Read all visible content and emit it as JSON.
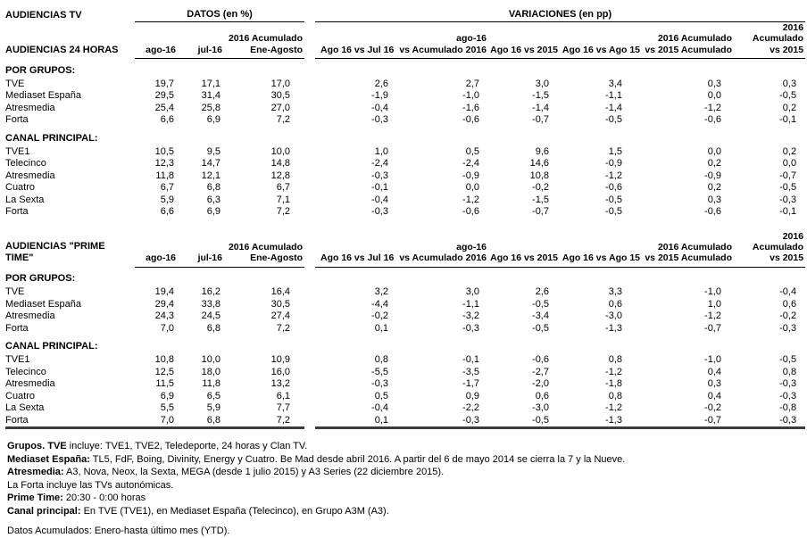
{
  "title": "AUDIENCIAS TV",
  "group_headers": {
    "datos": "DATOS (en %)",
    "variaciones": "VARIACIONES (en pp)"
  },
  "columns": [
    "ago-16",
    "jul-16",
    "2016 Acumulado\nEne-Agosto",
    "Ago 16 vs Jul 16",
    "ago-16\nvs Acumulado 2016",
    "Ago 16 vs 2015",
    "Ago 16 vs Ago 15",
    "2016 Acumulado\nvs 2015 Acumulado",
    "2016 Acumulado\nvs 2015"
  ],
  "sections": [
    {
      "title": "AUDIENCIAS 24 HORAS",
      "groups": [
        {
          "label": "POR GRUPOS:",
          "rows": [
            {
              "label": "TVE",
              "values": [
                "19,7",
                "17,1",
                "17,0",
                "2,6",
                "2,7",
                "3,0",
                "3,4",
                "0,3",
                "0,3"
              ]
            },
            {
              "label": "Mediaset España",
              "values": [
                "29,5",
                "31,4",
                "30,5",
                "-1,9",
                "-1,0",
                "-1,5",
                "-1,1",
                "0,0",
                "-0,5"
              ]
            },
            {
              "label": "Atresmedia",
              "values": [
                "25,4",
                "25,8",
                "27,0",
                "-0,4",
                "-1,6",
                "-1,4",
                "-1,4",
                "-1,2",
                "0,2"
              ]
            },
            {
              "label": "Forta",
              "values": [
                "6,6",
                "6,9",
                "7,2",
                "-0,3",
                "-0,6",
                "-0,7",
                "-0,5",
                "-0,6",
                "-0,1"
              ]
            }
          ]
        },
        {
          "label": "CANAL PRINCIPAL:",
          "rows": [
            {
              "label": "TVE1",
              "values": [
                "10,5",
                "9,5",
                "10,0",
                "1,0",
                "0,5",
                "9,6",
                "1,5",
                "0,0",
                "0,2"
              ]
            },
            {
              "label": "Telecinco",
              "values": [
                "12,3",
                "14,7",
                "14,8",
                "-2,4",
                "-2,4",
                "14,6",
                "-0,9",
                "0,2",
                "0,0"
              ]
            },
            {
              "label": "Atresmedia",
              "values": [
                "11,8",
                "12,1",
                "12,8",
                "-0,3",
                "-0,9",
                "10,8",
                "-1,2",
                "-0,9",
                "-0,7"
              ]
            },
            {
              "label": "Cuatro",
              "values": [
                "6,7",
                "6,8",
                "6,7",
                "-0,1",
                "0,0",
                "-0,2",
                "-0,6",
                "0,2",
                "-0,5"
              ]
            },
            {
              "label": "La Sexta",
              "values": [
                "5,9",
                "6,3",
                "7,1",
                "-0,4",
                "-1,2",
                "-1,5",
                "-0,5",
                "0,3",
                "-0,3"
              ]
            },
            {
              "label": "Forta",
              "values": [
                "6,6",
                "6,9",
                "7,2",
                "-0,3",
                "-0,6",
                "-0,7",
                "-0,5",
                "-0,6",
                "-0,1"
              ]
            }
          ]
        }
      ]
    },
    {
      "title": "AUDIENCIAS \"PRIME TIME\"",
      "groups": [
        {
          "label": "POR GRUPOS:",
          "rows": [
            {
              "label": "TVE",
              "values": [
                "19,4",
                "16,2",
                "16,4",
                "3,2",
                "3,0",
                "2,6",
                "3,3",
                "-1,0",
                "-0,4"
              ]
            },
            {
              "label": "Mediaset España",
              "values": [
                "29,4",
                "33,8",
                "30,5",
                "-4,4",
                "-1,1",
                "-0,5",
                "0,6",
                "1,0",
                "0,6"
              ]
            },
            {
              "label": "Atresmedia",
              "values": [
                "24,3",
                "24,5",
                "27,4",
                "-0,2",
                "-3,2",
                "-3,4",
                "-3,0",
                "-1,2",
                "-0,2"
              ]
            },
            {
              "label": "Forta",
              "values": [
                "7,0",
                "6,8",
                "7,2",
                "0,1",
                "-0,3",
                "-0,5",
                "-1,3",
                "-0,7",
                "-0,3"
              ]
            }
          ]
        },
        {
          "label": "CANAL PRINCIPAL:",
          "rows": [
            {
              "label": "TVE1",
              "values": [
                "10,8",
                "10,0",
                "10,9",
                "0,8",
                "-0,1",
                "-0,6",
                "0,8",
                "-1,0",
                "-0,5"
              ]
            },
            {
              "label": "Telecinco",
              "values": [
                "12,5",
                "18,0",
                "16,0",
                "-5,5",
                "-3,5",
                "-2,7",
                "-1,2",
                "0,4",
                "0,8"
              ]
            },
            {
              "label": "Atresmedia",
              "values": [
                "11,5",
                "11,8",
                "13,2",
                "-0,3",
                "-1,7",
                "-2,0",
                "-1,8",
                "0,3",
                "-0,3"
              ]
            },
            {
              "label": "Cuatro",
              "values": [
                "6,9",
                "6,5",
                "6,1",
                "0,5",
                "0,9",
                "0,6",
                "0,8",
                "0,4",
                "-0,3"
              ]
            },
            {
              "label": "La Sexta",
              "values": [
                "5,5",
                "5,9",
                "7,7",
                "-0,4",
                "-2,2",
                "-3,0",
                "-1,2",
                "-0,2",
                "-0,8"
              ]
            },
            {
              "label": "Forta",
              "values": [
                "7,0",
                "6,8",
                "7,2",
                "0,1",
                "-0,3",
                "-0,5",
                "-1,3",
                "-0,7",
                "-0,3"
              ]
            }
          ]
        }
      ]
    }
  ],
  "footnotes": [
    {
      "bold": "Grupos. TVE",
      "text": " incluye: TVE1, TVE2, Teledeporte, 24 horas y Clan TV."
    },
    {
      "bold": "Mediaset España:",
      "text": " TL5, FdF, Boing, Divinity, Energy y Cuatro. Be Mad desde abril 2016. A partir del 6 de mayo 2014 se cierra la 7 y la Nueve."
    },
    {
      "bold": "Atresmedia:",
      "text": " A3, Nova, Neox, la Sexta, MEGA (desde 1 julio 2015) y A3 Series (22 diciembre 2015)."
    },
    {
      "bold": "",
      "text": "La Forta incluye las TVs autonómicas."
    },
    {
      "bold": "Prime Time:",
      "text": " 20:30 - 0:00 horas"
    },
    {
      "bold": "Canal principal:",
      "text": " En TVE (TVE1), en Mediaset España (Telecinco), en Grupo A3M (A3)."
    },
    {
      "bold": "",
      "text": "Datos Acumulados: Enero-hasta último mes (YTD)."
    }
  ]
}
